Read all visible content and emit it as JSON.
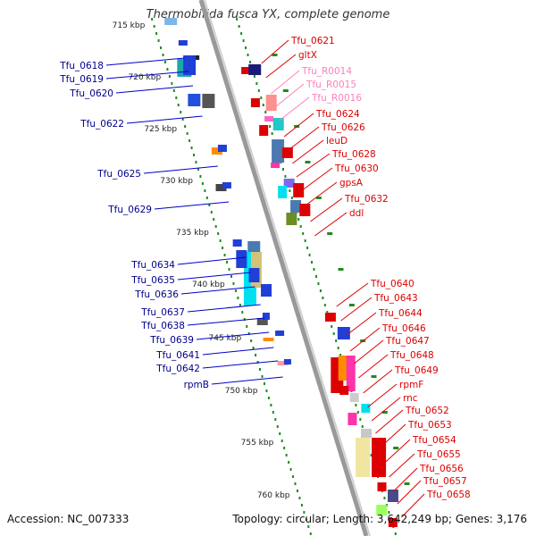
{
  "title": "Thermobifida fusca YX, complete genome",
  "accession": "Accession: NC_007333",
  "topology": "Topology: circular; Length: 3,642,249 bp; Genes: 3,176",
  "colors": {
    "left_label": "#00008b",
    "right_label": "#dd0000",
    "rna_label": "#ff7fbf",
    "backbone": "#999999",
    "scale_dots": "#1f8b1f"
  },
  "kbp_marks": [
    "715 kbp",
    "720 kbp",
    "725 kbp",
    "730 kbp",
    "735 kbp",
    "740 kbp",
    "745 kbp",
    "750 kbp",
    "755 kbp",
    "760 kbp"
  ],
  "left_labels": [
    "Tfu_0618",
    "Tfu_0619",
    "Tfu_0620",
    "Tfu_0622",
    "Tfu_0625",
    "Tfu_0629",
    "Tfu_0634",
    "Tfu_0635",
    "Tfu_0636",
    "Tfu_0637",
    "Tfu_0638",
    "Tfu_0639",
    "Tfu_0641",
    "Tfu_0642",
    "rpmB"
  ],
  "right_labels": [
    {
      "text": "Tfu_0621",
      "rna": false
    },
    {
      "text": "gltX",
      "rna": false
    },
    {
      "text": "Tfu_R0014",
      "rna": true
    },
    {
      "text": "Tfu_R0015",
      "rna": true
    },
    {
      "text": "Tfu_R0016",
      "rna": true
    },
    {
      "text": "Tfu_0624",
      "rna": false
    },
    {
      "text": "Tfu_0626",
      "rna": false
    },
    {
      "text": "leuD",
      "rna": false
    },
    {
      "text": "Tfu_0628",
      "rna": false
    },
    {
      "text": "Tfu_0630",
      "rna": false
    },
    {
      "text": "gpsA",
      "rna": false
    },
    {
      "text": "Tfu_0632",
      "rna": false
    },
    {
      "text": "ddl",
      "rna": false
    },
    {
      "text": "Tfu_0640",
      "rna": false
    },
    {
      "text": "Tfu_0643",
      "rna": false
    },
    {
      "text": "Tfu_0644",
      "rna": false
    },
    {
      "text": "Tfu_0646",
      "rna": false
    },
    {
      "text": "Tfu_0647",
      "rna": false
    },
    {
      "text": "Tfu_0648",
      "rna": false
    },
    {
      "text": "Tfu_0649",
      "rna": false
    },
    {
      "text": "rpmF",
      "rna": false
    },
    {
      "text": "rnc",
      "rna": false
    },
    {
      "text": "Tfu_0652",
      "rna": false
    },
    {
      "text": "Tfu_0653",
      "rna": false
    },
    {
      "text": "Tfu_0654",
      "rna": false
    },
    {
      "text": "Tfu_0655",
      "rna": false
    },
    {
      "text": "Tfu_0656",
      "rna": false
    },
    {
      "text": "Tfu_0657",
      "rna": false
    },
    {
      "text": "Tfu_0658",
      "rna": false
    }
  ]
}
